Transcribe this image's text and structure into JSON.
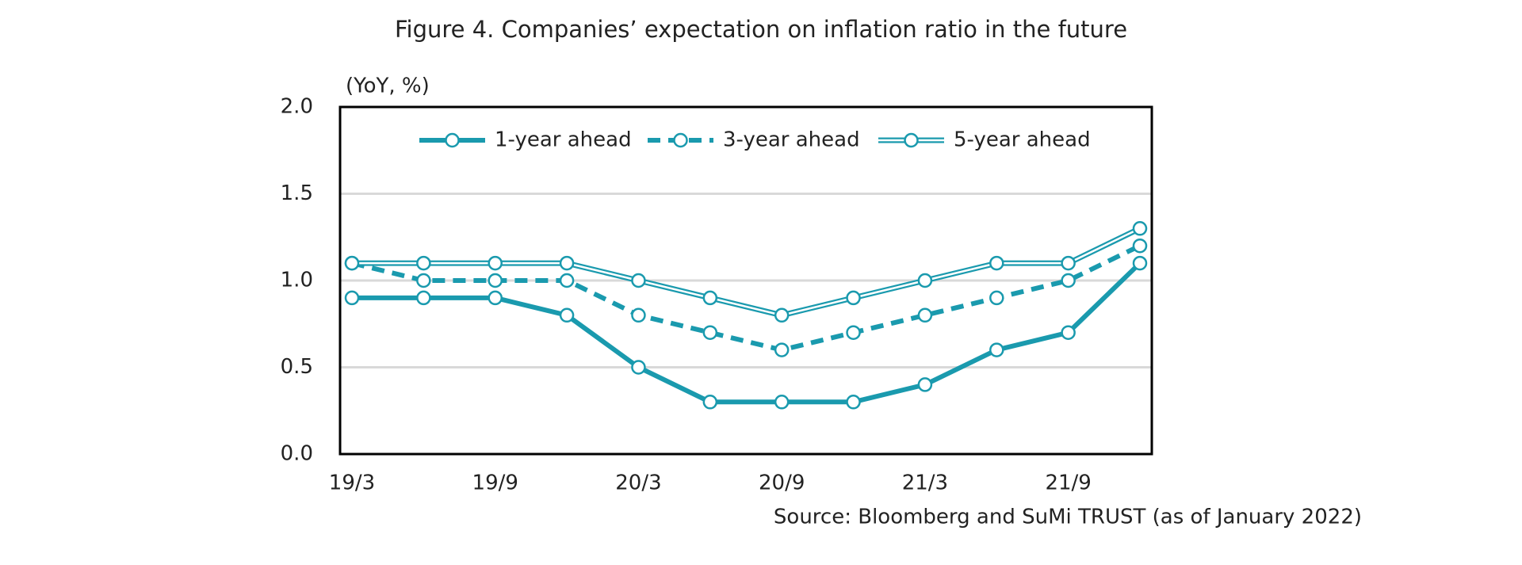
{
  "chart_data": {
    "type": "line",
    "title": "Figure 4. Companies’ expectation on inflation ratio in the future",
    "y_axis_label": "(YoY, %)",
    "source": "Source: Bloomberg and SuMi TRUST (as of January 2022)",
    "categories": [
      "19/3",
      null,
      "19/9",
      null,
      "20/3",
      null,
      "20/9",
      null,
      "21/3",
      null,
      "21/9",
      null
    ],
    "series": [
      {
        "name": "1-year ahead",
        "color": "#1a9aae",
        "line_style": "solid",
        "values": [
          0.9,
          0.9,
          0.9,
          0.8,
          0.5,
          0.3,
          0.3,
          0.3,
          0.4,
          0.6,
          0.7,
          1.1
        ]
      },
      {
        "name": "3-year ahead",
        "color": "#1a9aae",
        "line_style": "dashed",
        "values": [
          1.1,
          1.0,
          1.0,
          1.0,
          0.8,
          0.7,
          0.6,
          0.7,
          0.8,
          0.9,
          1.0,
          1.2
        ]
      },
      {
        "name": "5-year ahead",
        "color": "#1a9aae",
        "line_style": "double",
        "values": [
          1.1,
          1.1,
          1.1,
          1.1,
          1.0,
          0.9,
          0.8,
          0.9,
          1.0,
          1.1,
          1.1,
          1.3
        ]
      }
    ],
    "ylim": [
      0,
      2
    ],
    "yticks": [
      {
        "value": 0,
        "label": "0.0"
      },
      0.5,
      {
        "value": 1,
        "label": "1.0"
      },
      1.5,
      {
        "value": 2,
        "label": "2.0"
      }
    ],
    "grid": true,
    "legend": "top"
  }
}
